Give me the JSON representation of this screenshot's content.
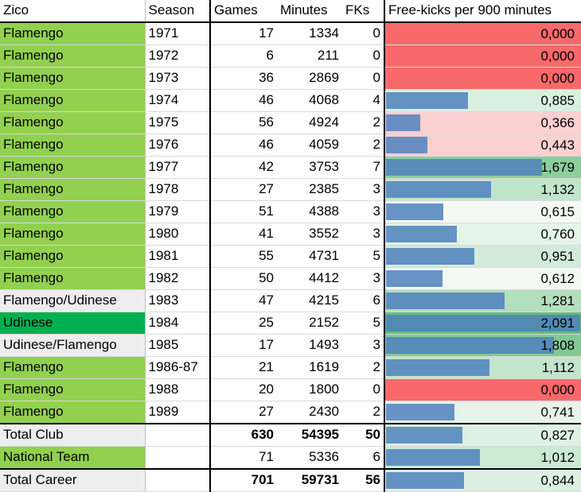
{
  "header": {
    "player": "Zico",
    "season": "Season",
    "games": "Games",
    "minutes": "Minutes",
    "fks": "FKs",
    "rate": "Free-kicks per 900 minutes"
  },
  "rows": [
    {
      "club": "Flamengo",
      "season": "1971",
      "games": "17",
      "minutes": "1334",
      "fks": "0",
      "rate": "0,000",
      "rate_value": 0.0
    },
    {
      "club": "Flamengo",
      "season": "1972",
      "games": "6",
      "minutes": "211",
      "fks": "0",
      "rate": "0,000",
      "rate_value": 0.0
    },
    {
      "club": "Flamengo",
      "season": "1973",
      "games": "36",
      "minutes": "2869",
      "fks": "0",
      "rate": "0,000",
      "rate_value": 0.0
    },
    {
      "club": "Flamengo",
      "season": "1974",
      "games": "46",
      "minutes": "4068",
      "fks": "4",
      "rate": "0,885",
      "rate_value": 0.885
    },
    {
      "club": "Flamengo",
      "season": "1975",
      "games": "56",
      "minutes": "4924",
      "fks": "2",
      "rate": "0,366",
      "rate_value": 0.366
    },
    {
      "club": "Flamengo",
      "season": "1976",
      "games": "46",
      "minutes": "4059",
      "fks": "2",
      "rate": "0,443",
      "rate_value": 0.443
    },
    {
      "club": "Flamengo",
      "season": "1977",
      "games": "42",
      "minutes": "3753",
      "fks": "7",
      "rate": "1,679",
      "rate_value": 1.679
    },
    {
      "club": "Flamengo",
      "season": "1978",
      "games": "27",
      "minutes": "2385",
      "fks": "3",
      "rate": "1,132",
      "rate_value": 1.132
    },
    {
      "club": "Flamengo",
      "season": "1979",
      "games": "51",
      "minutes": "4388",
      "fks": "3",
      "rate": "0,615",
      "rate_value": 0.615
    },
    {
      "club": "Flamengo",
      "season": "1980",
      "games": "41",
      "minutes": "3552",
      "fks": "3",
      "rate": "0,760",
      "rate_value": 0.76
    },
    {
      "club": "Flamengo",
      "season": "1981",
      "games": "55",
      "minutes": "4731",
      "fks": "5",
      "rate": "0,951",
      "rate_value": 0.951
    },
    {
      "club": "Flamengo",
      "season": "1982",
      "games": "50",
      "minutes": "4412",
      "fks": "3",
      "rate": "0,612",
      "rate_value": 0.612
    },
    {
      "club": "Flamengo/Udinese",
      "season": "1983",
      "games": "47",
      "minutes": "4215",
      "fks": "6",
      "rate": "1,281",
      "rate_value": 1.281
    },
    {
      "club": "Udinese",
      "season": "1984",
      "games": "25",
      "minutes": "2152",
      "fks": "5",
      "rate": "2,091",
      "rate_value": 2.091
    },
    {
      "club": "Udinese/Flamengo",
      "season": "1985",
      "games": "17",
      "minutes": "1493",
      "fks": "3",
      "rate": "1,808",
      "rate_value": 1.808
    },
    {
      "club": "Flamengo",
      "season": "1986-87",
      "games": "21",
      "minutes": "1619",
      "fks": "2",
      "rate": "1,112",
      "rate_value": 1.112
    },
    {
      "club": "Flamengo",
      "season": "1988",
      "games": "20",
      "minutes": "1800",
      "fks": "0",
      "rate": "0,000",
      "rate_value": 0.0
    },
    {
      "club": "Flamengo",
      "season": "1989",
      "games": "27",
      "minutes": "2430",
      "fks": "2",
      "rate": "0,741",
      "rate_value": 0.741
    }
  ],
  "totals": [
    {
      "label": "Total Club",
      "games": "630",
      "minutes": "54395",
      "fks": "50",
      "rate": "0,827",
      "rate_value": 0.827,
      "bold": true
    },
    {
      "label": "National Team",
      "games": "71",
      "minutes": "5336",
      "fks": "6",
      "rate": "1,012",
      "rate_value": 1.012,
      "bold": false
    },
    {
      "label": "Total Career",
      "games": "701",
      "minutes": "59731",
      "fks": "56",
      "rate": "0,844",
      "rate_value": 0.844,
      "bold": true
    }
  ],
  "rate_max": 2.091,
  "colors": {
    "flamengo": "#92d050",
    "udinese": "#00b050",
    "mixed": "#ededed",
    "bar": "#4f81bd",
    "zero": "#f8696b",
    "low": "#fbd0d1",
    "mid": "#f5f9f6",
    "high": "#63be7b"
  }
}
